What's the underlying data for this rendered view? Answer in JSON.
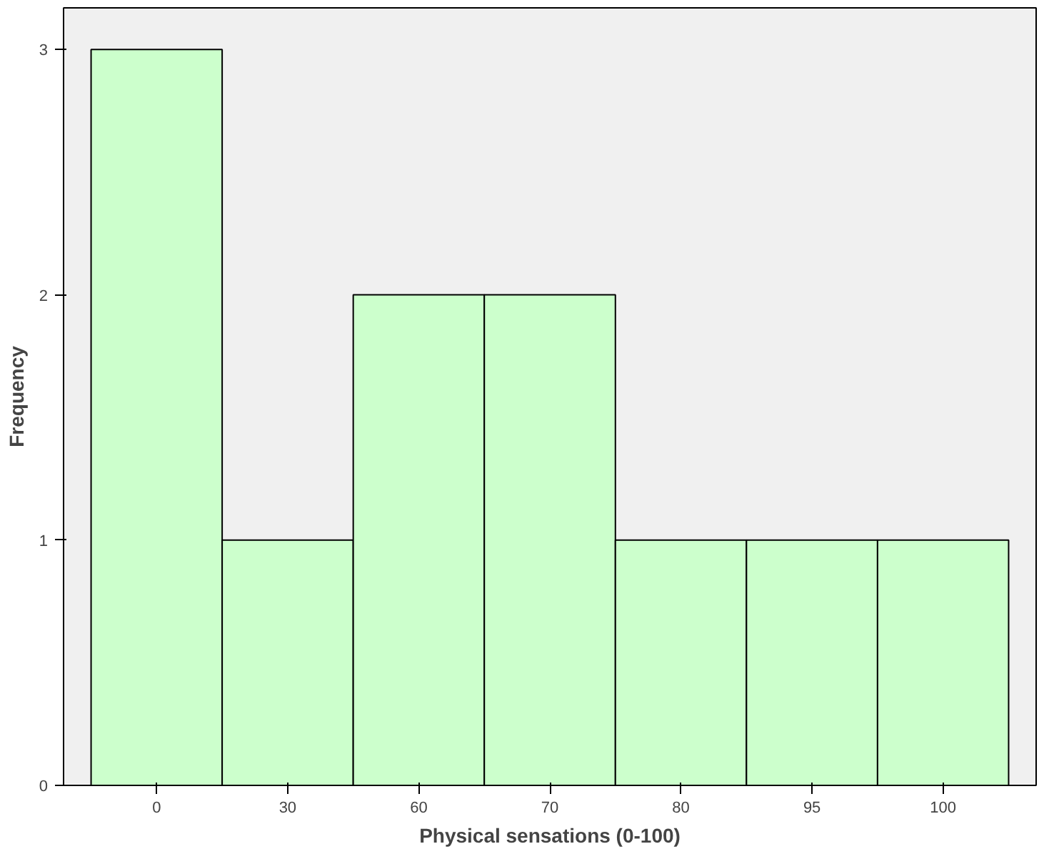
{
  "chart_data": {
    "type": "bar",
    "xlabel": "Physical sensations (0-100)",
    "ylabel": "Frequency",
    "categories": [
      "0",
      "30",
      "60",
      "70",
      "80",
      "95",
      "100"
    ],
    "values": [
      3,
      1,
      2,
      2,
      1,
      1,
      1
    ],
    "color": "#ccffcc",
    "ylim": [
      0,
      3.17
    ],
    "yticks": [
      0,
      1,
      2,
      3
    ],
    "grid": false
  }
}
